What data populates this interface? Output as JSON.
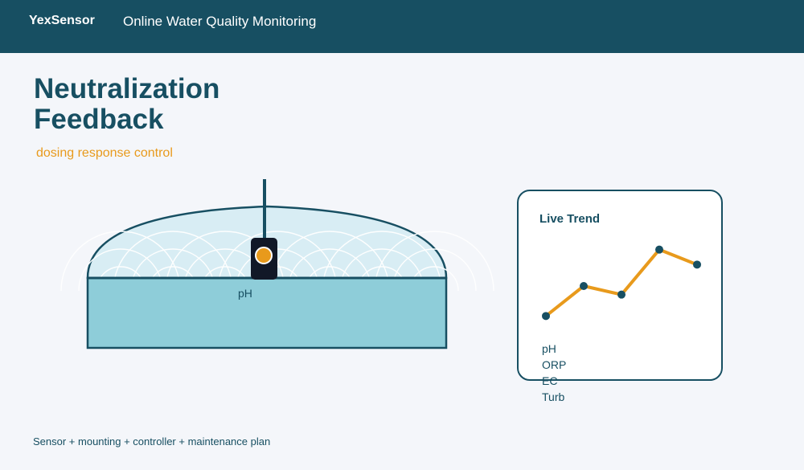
{
  "header": {
    "brand": "YexSensor",
    "title": "Online Water Quality Monitoring"
  },
  "page": {
    "title_line1": "Neutralization",
    "title_line2": "Feedback",
    "subtitle": "dosing response control"
  },
  "tank": {
    "probe_label": "pH"
  },
  "trend": {
    "title": "Live Trend",
    "legend": [
      "pH",
      "ORP",
      "EC",
      "Turb"
    ]
  },
  "chart_data": {
    "type": "line",
    "title": "Live Trend",
    "x": [
      1,
      2,
      3,
      4,
      5
    ],
    "series": [
      {
        "values": [
          1.0,
          2.4,
          2.0,
          4.1,
          3.4
        ]
      }
    ],
    "ylim": [
      0,
      4.5
    ],
    "grid": false
  },
  "footer": {
    "text": "Sensor + mounting + controller + maintenance plan"
  },
  "colors": {
    "navy": "#174f62",
    "accent": "#e89a1c",
    "water": "#8ecdd9",
    "dome": "#d8edf4",
    "probe_body": "#111827"
  }
}
